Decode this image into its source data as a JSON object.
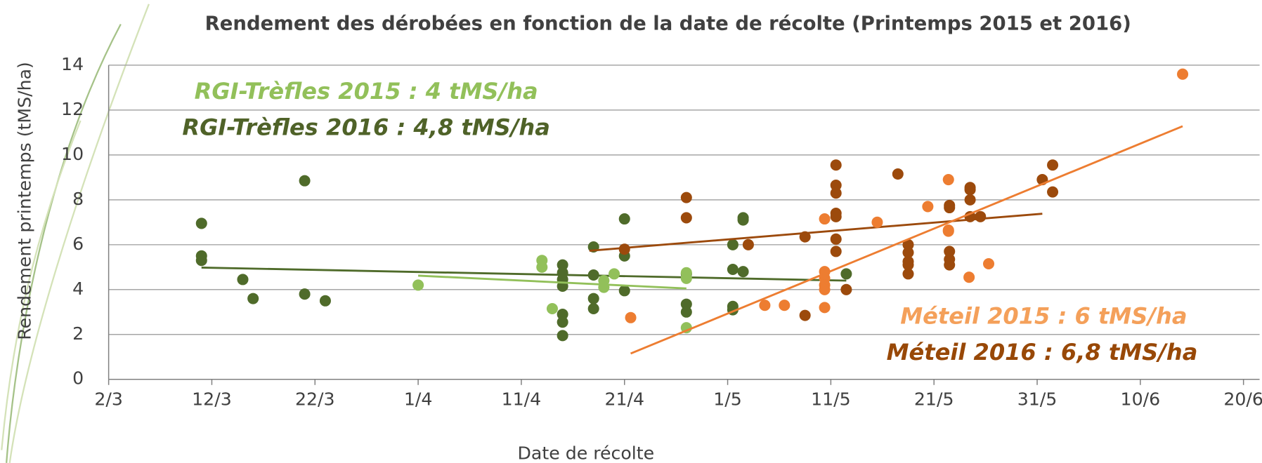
{
  "chart_data": {
    "type": "scatter",
    "title": "Rendement des dérobées en fonction de la date de récolte (Printemps 2015 et 2016)",
    "x_label": "Date de récolte",
    "y_label": "Rendement printemps (tMS/ha)",
    "xlim": [
      61,
      171
    ],
    "xticks": [
      {
        "value": 61,
        "label": "2/3"
      },
      {
        "value": 71,
        "label": "12/3"
      },
      {
        "value": 81,
        "label": "22/3"
      },
      {
        "value": 91,
        "label": "1/4"
      },
      {
        "value": 101,
        "label": "11/4"
      },
      {
        "value": 111,
        "label": "21/4"
      },
      {
        "value": 121,
        "label": "1/5"
      },
      {
        "value": 131,
        "label": "11/5"
      },
      {
        "value": 141,
        "label": "21/5"
      },
      {
        "value": 151,
        "label": "31/5"
      },
      {
        "value": 161,
        "label": "10/6"
      },
      {
        "value": 171,
        "label": "20/6"
      }
    ],
    "ylim": [
      0,
      14
    ],
    "yticks": [
      0,
      2,
      4,
      6,
      8,
      10,
      12,
      14
    ],
    "grid": true,
    "series": [
      {
        "color": "#4f6b2a",
        "x": [
          70,
          70,
          70,
          74,
          75,
          80,
          80,
          82,
          105,
          105,
          105,
          105,
          105,
          105,
          105,
          108,
          108,
          108,
          108,
          111,
          111,
          111,
          117,
          117,
          117,
          121.5,
          121.5,
          121.5,
          121.5,
          122.5,
          122.5,
          122.5,
          132.5
        ],
        "values": [
          6.95,
          5.5,
          5.3,
          4.45,
          3.6,
          8.85,
          3.8,
          3.5,
          5.1,
          4.75,
          4.45,
          4.15,
          2.9,
          2.55,
          1.95,
          5.9,
          4.65,
          3.6,
          3.15,
          7.15,
          5.5,
          3.95,
          4.7,
          3.35,
          3.0,
          6.0,
          4.9,
          3.25,
          3.1,
          7.2,
          7.1,
          4.8,
          4.7
        ],
        "trend": {
          "x": [
            70,
            132.5
          ],
          "y": [
            4.98,
            4.4
          ]
        }
      },
      {
        "color": "#92c05a",
        "x": [
          91,
          103,
          103,
          104,
          109,
          109,
          110,
          117,
          117,
          117
        ],
        "values": [
          4.2,
          5.3,
          5.0,
          3.15,
          4.4,
          4.1,
          4.7,
          4.75,
          4.5,
          2.3
        ],
        "trend": {
          "x": [
            91,
            117
          ],
          "y": [
            4.62,
            4.05
          ]
        }
      },
      {
        "color": "#9c4a0c",
        "x": [
          111,
          117,
          117,
          123,
          128.5,
          128.5,
          131.5,
          131.5,
          131.5,
          131.5,
          131.5,
          131.5,
          131.5,
          132.5,
          137.5,
          138.5,
          138.5,
          138.5,
          138.5,
          138.5,
          142.5,
          142.5,
          142.5,
          142.5,
          142.5,
          144.5,
          144.5,
          144.5,
          144.5,
          145.5,
          151.5,
          152.5,
          152.5
        ],
        "values": [
          5.8,
          8.1,
          7.2,
          6.0,
          6.35,
          2.85,
          9.55,
          8.65,
          8.3,
          7.4,
          7.25,
          6.25,
          5.7,
          4.0,
          9.15,
          6.0,
          5.65,
          5.25,
          5.1,
          4.7,
          7.75,
          7.65,
          5.7,
          5.35,
          5.1,
          8.55,
          8.45,
          8.0,
          7.25,
          7.25,
          8.9,
          9.55,
          8.35
        ],
        "trend": {
          "x": [
            107.6,
            151.5
          ],
          "y": [
            5.73,
            7.38
          ]
        }
      },
      {
        "color": "#ed7d31",
        "x": [
          111.6,
          124.6,
          126.5,
          130.4,
          130.4,
          130.4,
          130.4,
          130.4,
          130.4,
          135.5,
          140.4,
          142.4,
          142.4,
          142.4,
          144.4,
          146.3,
          165.1
        ],
        "values": [
          2.75,
          3.3,
          3.3,
          7.15,
          4.8,
          4.5,
          4.2,
          4.0,
          3.2,
          7.0,
          7.7,
          8.9,
          6.65,
          6.6,
          4.55,
          5.15,
          13.6
        ],
        "trend": {
          "x": [
            111.6,
            165.1
          ],
          "y": [
            1.15,
            11.28
          ]
        }
      }
    ],
    "annotations": [
      {
        "text": "RGI-Trèfles 2015 : 4 tMS/ha",
        "color": "#92c05a"
      },
      {
        "text": "RGI-Trèfles 2016 : 4,8 tMS/ha",
        "color": "#4f6228"
      },
      {
        "text": "Méteil 2015 : 6 tMS/ha",
        "color": "#f4a05a"
      },
      {
        "text": "Méteil 2016 : 6,8 tMS/ha",
        "color": "#984807"
      }
    ]
  }
}
